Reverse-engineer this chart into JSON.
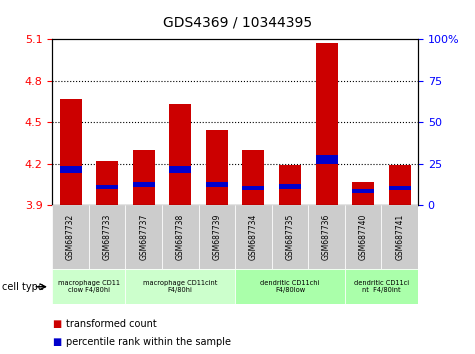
{
  "title": "GDS4369 / 10344395",
  "samples": [
    "GSM687732",
    "GSM687733",
    "GSM687737",
    "GSM687738",
    "GSM687739",
    "GSM687734",
    "GSM687735",
    "GSM687736",
    "GSM687740",
    "GSM687741"
  ],
  "transformed_counts": [
    4.67,
    4.22,
    4.3,
    4.63,
    4.44,
    4.3,
    4.19,
    5.07,
    4.07,
    4.19
  ],
  "percentile_values": [
    4.13,
    4.02,
    4.03,
    4.13,
    4.03,
    4.01,
    4.02,
    4.2,
    3.99,
    4.01
  ],
  "blue_heights": [
    0.055,
    0.03,
    0.035,
    0.055,
    0.04,
    0.03,
    0.035,
    0.06,
    0.025,
    0.03
  ],
  "ylim_min": 3.9,
  "ylim_max": 5.1,
  "yticks": [
    3.9,
    4.2,
    4.5,
    4.8,
    5.1
  ],
  "ytick_labels_left": [
    "3.9",
    "4.2",
    "4.5",
    "4.8",
    "5.1"
  ],
  "ytick_labels_right": [
    "0",
    "25",
    "50",
    "75",
    "100%"
  ],
  "bar_color_red": "#cc0000",
  "bar_color_blue": "#0000cc",
  "bar_width": 0.6,
  "cell_type_groups": [
    {
      "label": "macrophage CD11\nclow F4/80hi",
      "start": 0,
      "end": 2,
      "color": "#ccffcc"
    },
    {
      "label": "macrophage CD11cint\nF4/80hi",
      "start": 2,
      "end": 5,
      "color": "#ccffcc"
    },
    {
      "label": "dendritic CD11chi\nF4/80low",
      "start": 5,
      "end": 8,
      "color": "#aaffaa"
    },
    {
      "label": "dendritic CD11ci\nnt  F4/80int",
      "start": 8,
      "end": 10,
      "color": "#aaffaa"
    }
  ],
  "legend_red_label": "transformed count",
  "legend_blue_label": "percentile rank within the sample",
  "cell_type_label": "cell type",
  "xtick_area_color": "#cccccc"
}
